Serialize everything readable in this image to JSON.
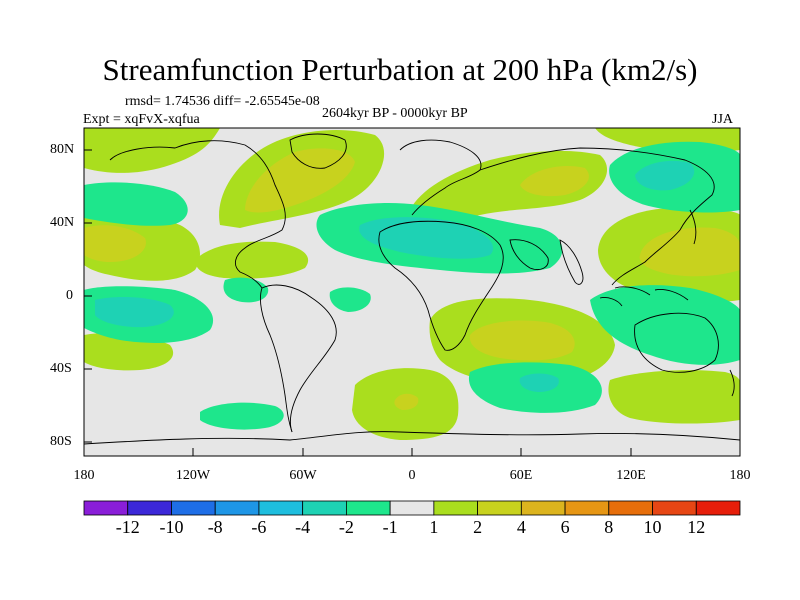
{
  "title": "Streamfunction Perturbation at 200 hPa (km2/s)",
  "stats": "rmsd= 1.74536  diff= -2.65545e-08",
  "experiment": "Expt = xqFvX-xqfua",
  "period": "2604kyr BP - 0000kyr BP",
  "season": "JJA",
  "lat_labels": [
    "80N",
    "40N",
    "0",
    "40S",
    "80S"
  ],
  "lon_labels": [
    "180",
    "120W",
    "60W",
    "0",
    "60E",
    "120E",
    "180"
  ],
  "colorbar": {
    "labels": [
      "-12",
      "-10",
      "-8",
      "-6",
      "-4",
      "-2",
      "-1",
      "1",
      "2",
      "4",
      "6",
      "8",
      "10",
      "12"
    ],
    "colors": [
      "#8a1ed8",
      "#3c28d8",
      "#1e6ee6",
      "#1e96e6",
      "#1ebede",
      "#1ed2b4",
      "#1ee68c",
      "#e6e6e6",
      "#aade1e",
      "#c8d21e",
      "#dcb41e",
      "#e69614",
      "#e66e0a",
      "#e64614",
      "#e61e0a"
    ]
  },
  "field": {
    "palette": {
      "neutral": "#e6e6e6",
      "pos1": "#aade1e",
      "pos2": "#c8d21e",
      "neg1": "#1ee68c",
      "neg2": "#1ed2b4",
      "neg3": "#1ebede"
    }
  }
}
